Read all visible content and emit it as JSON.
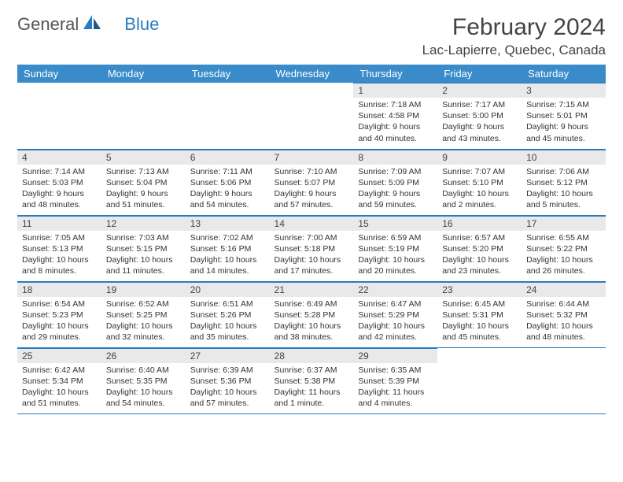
{
  "logo": {
    "text1": "General",
    "text2": "Blue"
  },
  "title": "February 2024",
  "location": "Lac-Lapierre, Quebec, Canada",
  "colors": {
    "header_bg": "#3a8bc9",
    "header_text": "#ffffff",
    "rule": "#2b7bbf",
    "daynum_bg": "#e9e9e9",
    "text": "#333333",
    "logo_gray": "#555555",
    "logo_blue": "#2b7bbf"
  },
  "day_headers": [
    "Sunday",
    "Monday",
    "Tuesday",
    "Wednesday",
    "Thursday",
    "Friday",
    "Saturday"
  ],
  "weeks": [
    [
      null,
      null,
      null,
      null,
      {
        "n": "1",
        "sunrise": "7:18 AM",
        "sunset": "4:58 PM",
        "daylight": "9 hours and 40 minutes."
      },
      {
        "n": "2",
        "sunrise": "7:17 AM",
        "sunset": "5:00 PM",
        "daylight": "9 hours and 43 minutes."
      },
      {
        "n": "3",
        "sunrise": "7:15 AM",
        "sunset": "5:01 PM",
        "daylight": "9 hours and 45 minutes."
      }
    ],
    [
      {
        "n": "4",
        "sunrise": "7:14 AM",
        "sunset": "5:03 PM",
        "daylight": "9 hours and 48 minutes."
      },
      {
        "n": "5",
        "sunrise": "7:13 AM",
        "sunset": "5:04 PM",
        "daylight": "9 hours and 51 minutes."
      },
      {
        "n": "6",
        "sunrise": "7:11 AM",
        "sunset": "5:06 PM",
        "daylight": "9 hours and 54 minutes."
      },
      {
        "n": "7",
        "sunrise": "7:10 AM",
        "sunset": "5:07 PM",
        "daylight": "9 hours and 57 minutes."
      },
      {
        "n": "8",
        "sunrise": "7:09 AM",
        "sunset": "5:09 PM",
        "daylight": "9 hours and 59 minutes."
      },
      {
        "n": "9",
        "sunrise": "7:07 AM",
        "sunset": "5:10 PM",
        "daylight": "10 hours and 2 minutes."
      },
      {
        "n": "10",
        "sunrise": "7:06 AM",
        "sunset": "5:12 PM",
        "daylight": "10 hours and 5 minutes."
      }
    ],
    [
      {
        "n": "11",
        "sunrise": "7:05 AM",
        "sunset": "5:13 PM",
        "daylight": "10 hours and 8 minutes."
      },
      {
        "n": "12",
        "sunrise": "7:03 AM",
        "sunset": "5:15 PM",
        "daylight": "10 hours and 11 minutes."
      },
      {
        "n": "13",
        "sunrise": "7:02 AM",
        "sunset": "5:16 PM",
        "daylight": "10 hours and 14 minutes."
      },
      {
        "n": "14",
        "sunrise": "7:00 AM",
        "sunset": "5:18 PM",
        "daylight": "10 hours and 17 minutes."
      },
      {
        "n": "15",
        "sunrise": "6:59 AM",
        "sunset": "5:19 PM",
        "daylight": "10 hours and 20 minutes."
      },
      {
        "n": "16",
        "sunrise": "6:57 AM",
        "sunset": "5:20 PM",
        "daylight": "10 hours and 23 minutes."
      },
      {
        "n": "17",
        "sunrise": "6:55 AM",
        "sunset": "5:22 PM",
        "daylight": "10 hours and 26 minutes."
      }
    ],
    [
      {
        "n": "18",
        "sunrise": "6:54 AM",
        "sunset": "5:23 PM",
        "daylight": "10 hours and 29 minutes."
      },
      {
        "n": "19",
        "sunrise": "6:52 AM",
        "sunset": "5:25 PM",
        "daylight": "10 hours and 32 minutes."
      },
      {
        "n": "20",
        "sunrise": "6:51 AM",
        "sunset": "5:26 PM",
        "daylight": "10 hours and 35 minutes."
      },
      {
        "n": "21",
        "sunrise": "6:49 AM",
        "sunset": "5:28 PM",
        "daylight": "10 hours and 38 minutes."
      },
      {
        "n": "22",
        "sunrise": "6:47 AM",
        "sunset": "5:29 PM",
        "daylight": "10 hours and 42 minutes."
      },
      {
        "n": "23",
        "sunrise": "6:45 AM",
        "sunset": "5:31 PM",
        "daylight": "10 hours and 45 minutes."
      },
      {
        "n": "24",
        "sunrise": "6:44 AM",
        "sunset": "5:32 PM",
        "daylight": "10 hours and 48 minutes."
      }
    ],
    [
      {
        "n": "25",
        "sunrise": "6:42 AM",
        "sunset": "5:34 PM",
        "daylight": "10 hours and 51 minutes."
      },
      {
        "n": "26",
        "sunrise": "6:40 AM",
        "sunset": "5:35 PM",
        "daylight": "10 hours and 54 minutes."
      },
      {
        "n": "27",
        "sunrise": "6:39 AM",
        "sunset": "5:36 PM",
        "daylight": "10 hours and 57 minutes."
      },
      {
        "n": "28",
        "sunrise": "6:37 AM",
        "sunset": "5:38 PM",
        "daylight": "11 hours and 1 minute."
      },
      {
        "n": "29",
        "sunrise": "6:35 AM",
        "sunset": "5:39 PM",
        "daylight": "11 hours and 4 minutes."
      },
      null,
      null
    ]
  ],
  "labels": {
    "sunrise": "Sunrise:",
    "sunset": "Sunset:",
    "daylight": "Daylight:"
  }
}
